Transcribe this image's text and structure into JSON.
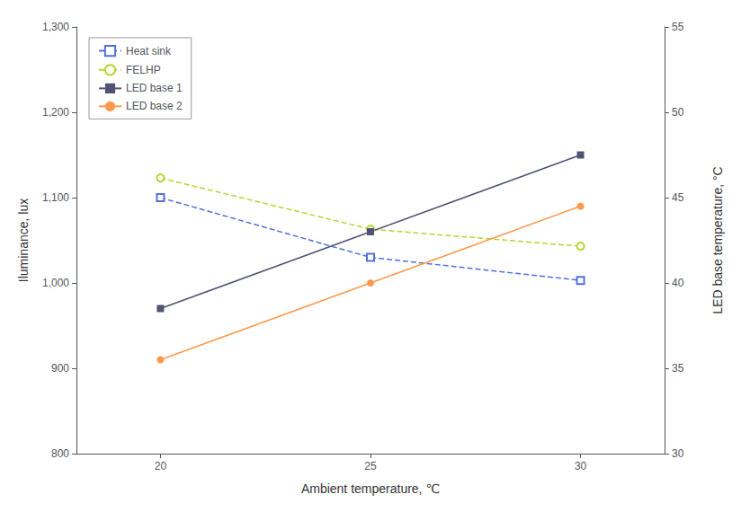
{
  "chart_data": {
    "type": "line",
    "x": [
      20,
      25,
      30
    ],
    "xlabel": "Ambient temperature, ℃",
    "ylabel": "Iluminance, lux",
    "y2label": "LED base temperature, °C",
    "xlim": [
      18,
      32
    ],
    "xticks": [
      20,
      25,
      30
    ],
    "ylim": [
      800,
      1300
    ],
    "yticks": [
      800,
      900,
      1000,
      1100,
      1200,
      1300
    ],
    "y2lim": [
      30,
      55
    ],
    "y2ticks": [
      30,
      35,
      40,
      45,
      50,
      55
    ],
    "grid": false,
    "legend": "upper left",
    "series": [
      {
        "name": "Heat sink",
        "values": [
          1100,
          1030,
          1003
        ],
        "marker": "open square",
        "line_style": "dashed"
      },
      {
        "name": "FELHP",
        "values": [
          1123,
          1063,
          1043
        ],
        "marker": "open circle",
        "line_style": "dashed"
      },
      {
        "name": "LED base 1",
        "values": [
          38.5,
          43.0,
          47.5
        ],
        "marker": "square",
        "line_style": "solid",
        "axis": "y2"
      },
      {
        "name": "LED base 2",
        "values": [
          35.5,
          40.0,
          44.5
        ],
        "marker": "circle",
        "line_style": "solid",
        "axis": "y2"
      }
    ]
  }
}
